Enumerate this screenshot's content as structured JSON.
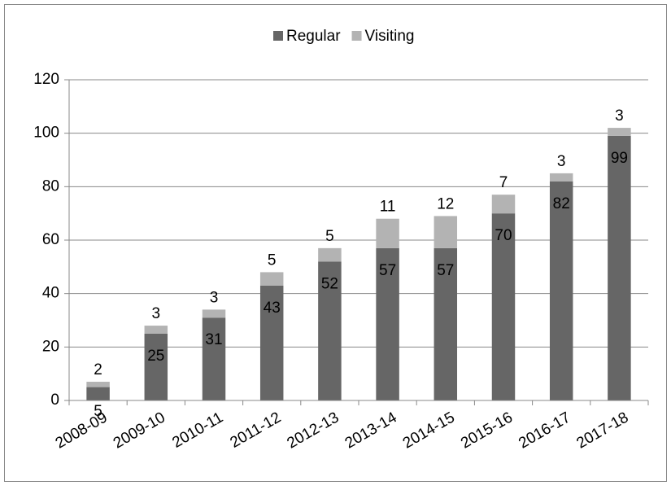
{
  "chart_data": {
    "type": "stacked_bar",
    "categories": [
      "2008-09",
      "2009-10",
      "2010-11",
      "2011-12",
      "2012-13",
      "2013-14",
      "2014-15",
      "2015-16",
      "2016-17",
      "2017-18"
    ],
    "series": [
      {
        "name": "Regular",
        "color": "#666666",
        "values": [
          5,
          25,
          31,
          43,
          52,
          57,
          57,
          70,
          82,
          99
        ]
      },
      {
        "name": "Visiting",
        "color": "#b3b3b3",
        "values": [
          2,
          3,
          3,
          5,
          5,
          11,
          12,
          7,
          3,
          3
        ]
      }
    ],
    "ylim": [
      0,
      120
    ],
    "yticks": [
      0,
      20,
      40,
      60,
      80,
      100,
      120
    ],
    "grid": true,
    "legend": "top"
  }
}
